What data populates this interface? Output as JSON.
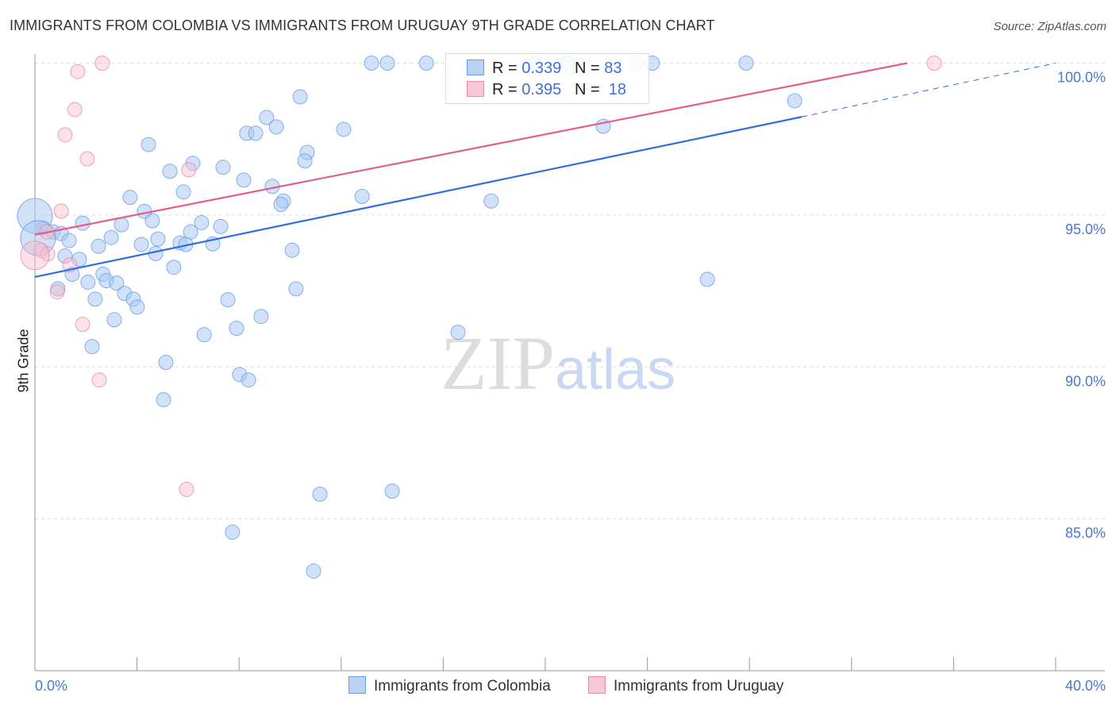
{
  "chart_data": {
    "type": "scatter",
    "title": "IMMIGRANTS FROM COLOMBIA VS IMMIGRANTS FROM URUGUAY 9TH GRADE CORRELATION CHART",
    "source": "Source: ZipAtlas.com",
    "xlabel": "",
    "ylabel": "9th Grade",
    "xlim": [
      0,
      40
    ],
    "ylim": [
      80,
      100
    ],
    "x_tick_labels": [
      "0.0%",
      "40.0%"
    ],
    "y_ticks": [
      {
        "value": 100,
        "label": "100.0%"
      },
      {
        "value": 95,
        "label": "95.0%"
      },
      {
        "value": 90,
        "label": "90.0%"
      },
      {
        "value": 85,
        "label": "85.0%"
      }
    ],
    "grid": true,
    "legend_stats": [
      {
        "r_label": "R = ",
        "r": "0.339",
        "n_label": "N = ",
        "n": "83"
      },
      {
        "r_label": "R = ",
        "r": "0.395",
        "n_label": "N = ",
        "n": "18"
      }
    ],
    "watermark": "ZIPatlas",
    "series": [
      {
        "name": "Immigrants from Colombia",
        "color": "#6a9be8",
        "fill": "#aac8f2",
        "trend": [
          [
            0,
            92.96
          ],
          [
            30.05,
            98.23
          ]
        ],
        "trend_ext": [
          [
            30.05,
            98.23
          ],
          [
            40,
            100
          ]
        ],
        "points": [
          [
            13.19,
            100
          ],
          [
            13.81,
            100
          ],
          [
            15.34,
            100
          ],
          [
            19.53,
            100
          ],
          [
            20.84,
            100
          ],
          [
            24.2,
            100
          ],
          [
            27.87,
            100
          ],
          [
            29.77,
            98.76
          ],
          [
            22.27,
            97.92
          ],
          [
            10.39,
            98.89
          ],
          [
            9.08,
            98.21
          ],
          [
            9.46,
            97.9
          ],
          [
            8.3,
            97.69
          ],
          [
            8.65,
            97.69
          ],
          [
            12.1,
            97.82
          ],
          [
            4.45,
            97.32
          ],
          [
            10.67,
            97.06
          ],
          [
            10.58,
            96.78
          ],
          [
            6.19,
            96.7
          ],
          [
            5.29,
            96.44
          ],
          [
            7.37,
            96.57
          ],
          [
            8.18,
            96.15
          ],
          [
            5.82,
            95.76
          ],
          [
            9.3,
            95.94
          ],
          [
            3.73,
            95.58
          ],
          [
            12.82,
            95.61
          ],
          [
            9.74,
            95.46
          ],
          [
            9.64,
            95.35
          ],
          [
            17.88,
            95.46
          ],
          [
            4.29,
            95.12
          ],
          [
            1.87,
            94.73
          ],
          [
            3.39,
            94.68
          ],
          [
            4.6,
            94.81
          ],
          [
            6.53,
            94.75
          ],
          [
            7.28,
            94.62
          ],
          [
            6.1,
            94.44
          ],
          [
            0.34,
            94.57
          ],
          [
            0.72,
            94.44
          ],
          [
            1.03,
            94.39
          ],
          [
            2.99,
            94.26
          ],
          [
            4.82,
            94.21
          ],
          [
            1.34,
            94.16
          ],
          [
            2.49,
            93.97
          ],
          [
            4.17,
            94.03
          ],
          [
            5.69,
            94.08
          ],
          [
            5.91,
            94.03
          ],
          [
            6.97,
            94.05
          ],
          [
            10.08,
            93.84
          ],
          [
            4.73,
            93.73
          ],
          [
            1.18,
            93.65
          ],
          [
            1.74,
            93.54
          ],
          [
            5.44,
            93.28
          ],
          [
            1.46,
            93.05
          ],
          [
            2.67,
            93.05
          ],
          [
            2.08,
            92.79
          ],
          [
            2.8,
            92.84
          ],
          [
            3.2,
            92.76
          ],
          [
            0.9,
            92.57
          ],
          [
            3.51,
            92.42
          ],
          [
            10.23,
            92.57
          ],
          [
            26.35,
            92.88
          ],
          [
            2.36,
            92.23
          ],
          [
            3.86,
            92.23
          ],
          [
            4.01,
            91.97
          ],
          [
            7.56,
            92.21
          ],
          [
            8.86,
            91.66
          ],
          [
            3.11,
            91.55
          ],
          [
            7.9,
            91.27
          ],
          [
            6.63,
            91.06
          ],
          [
            16.58,
            91.14
          ],
          [
            2.24,
            90.67
          ],
          [
            5.13,
            90.15
          ],
          [
            8.02,
            89.75
          ],
          [
            8.37,
            89.57
          ],
          [
            5.04,
            88.92
          ],
          [
            11.17,
            85.81
          ],
          [
            14.0,
            85.91
          ],
          [
            7.74,
            84.56
          ],
          [
            10.92,
            83.28
          ],
          [
            0,
            94.97,
            "big"
          ],
          [
            0.12,
            94.24,
            "big"
          ]
        ]
      },
      {
        "name": "Immigrants from Uruguay",
        "color": "#e88aa6",
        "fill": "#f6bccd",
        "trend": [
          [
            0,
            94.35
          ],
          [
            34.18,
            100
          ]
        ],
        "points": [
          [
            2.64,
            100
          ],
          [
            1.68,
            99.72
          ],
          [
            1.56,
            98.47
          ],
          [
            1.18,
            97.64
          ],
          [
            2.05,
            96.85
          ],
          [
            6.03,
            96.49
          ],
          [
            23.58,
            100
          ],
          [
            35.24,
            100
          ],
          [
            1.03,
            95.13
          ],
          [
            0.25,
            93.83
          ],
          [
            0.5,
            93.72
          ],
          [
            1.37,
            93.36
          ],
          [
            0.87,
            92.47
          ],
          [
            1.87,
            91.4
          ],
          [
            2.52,
            89.57
          ],
          [
            5.94,
            85.97
          ],
          [
            0,
            93.67,
            "big"
          ],
          [
            0.47,
            94.44
          ]
        ]
      }
    ]
  }
}
